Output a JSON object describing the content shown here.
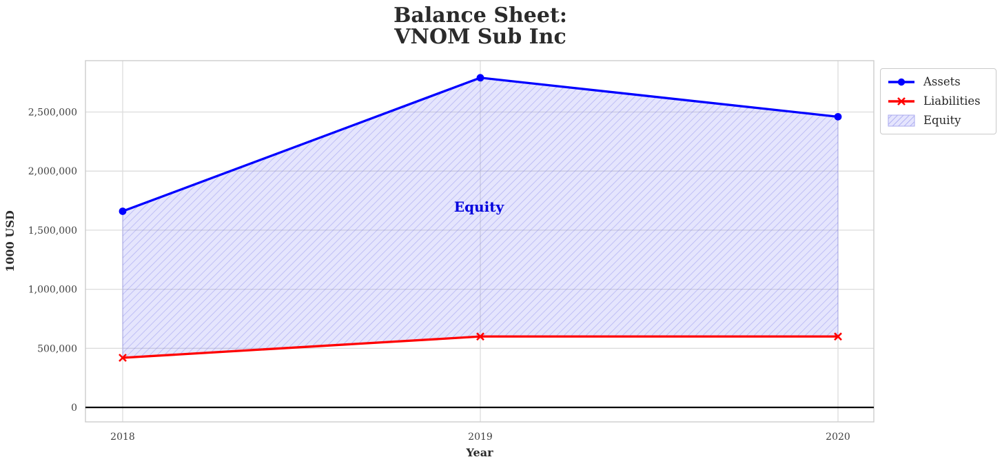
{
  "title": {
    "line1": "Balance Sheet:",
    "line2": "VNOM Sub Inc"
  },
  "axes": {
    "x_label": "Year",
    "y_label": "1000 USD"
  },
  "annotation": {
    "text": "Equity",
    "color": "#0000dd"
  },
  "legend": {
    "items": [
      {
        "label": "Assets",
        "marker": "line-circle",
        "color": "#0000ff"
      },
      {
        "label": "Liabilities",
        "marker": "line-x",
        "color": "#ff0000"
      },
      {
        "label": "Equity",
        "marker": "hatched-patch",
        "color": "#8080e8"
      }
    ]
  },
  "colors": {
    "assets_line": "#0000ff",
    "liabilities_line": "#ff0000",
    "equity_fill": "rgba(110,110,245,0.18)",
    "equity_hatch": "rgba(80,80,225,0.32)",
    "grid": "#dcdcdc",
    "spine": "#cccccc",
    "zero_line": "#000000"
  },
  "chart_data": {
    "type": "line",
    "title": "Balance Sheet:\nVNOM Sub Inc",
    "xlabel": "Year",
    "ylabel": "1000 USD",
    "x": [
      2018,
      2019,
      2020
    ],
    "x_tick_labels": [
      "2018",
      "2019",
      "2020"
    ],
    "y_ticks": [
      0,
      500000,
      1000000,
      1500000,
      2000000,
      2500000
    ],
    "y_tick_labels": [
      "0",
      "500,000",
      "1,000,000",
      "1,500,000",
      "2,000,000",
      "2,500,000"
    ],
    "ylim": [
      -140000,
      2935000
    ],
    "grid": true,
    "zero_line": true,
    "legend_position": "upper right",
    "series": [
      {
        "name": "Assets",
        "values": [
          1660000,
          2790000,
          2460000
        ],
        "color": "#0000ff",
        "marker": "circle"
      },
      {
        "name": "Liabilities",
        "values": [
          420000,
          600000,
          600000
        ],
        "color": "#ff0000",
        "marker": "x"
      }
    ],
    "area": {
      "name": "Equity",
      "between": [
        "Liabilities",
        "Assets"
      ],
      "values": [
        1240000,
        2190000,
        1860000
      ],
      "label_annotation": "Equity"
    }
  }
}
